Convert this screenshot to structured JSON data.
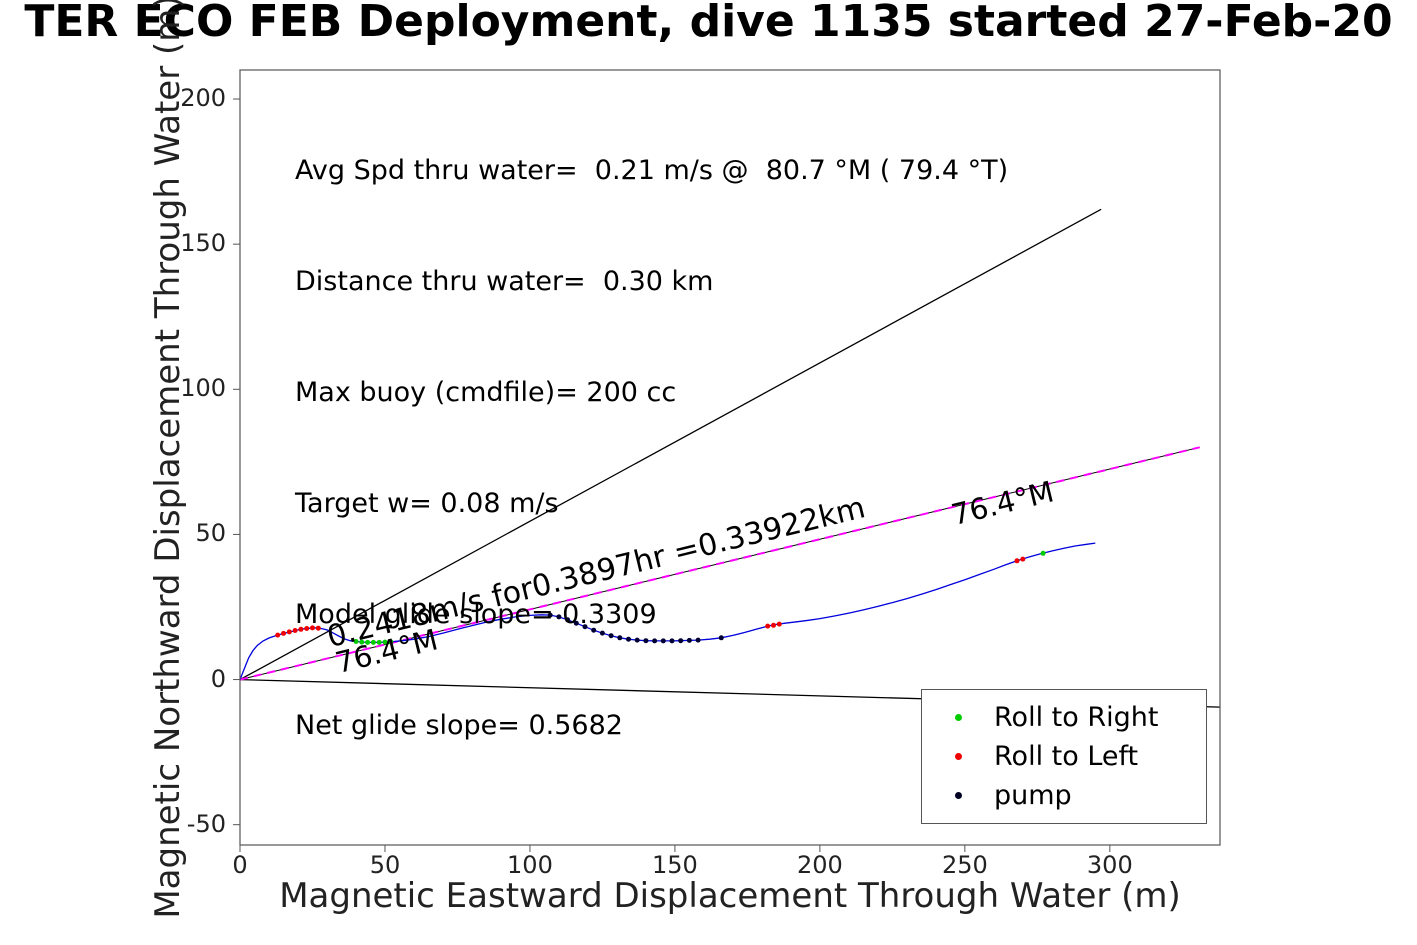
{
  "title": "TER ECO FEB Deployment, dive 1135 started 27-Feb-20",
  "stats": {
    "lines": [
      "Avg Spd thru water=  0.21 m/s @  80.7 °M ( 79.4 °T)",
      "Distance thru water=  0.30 km",
      "Max buoy (cmdfile)= 200 cc",
      "Target w= 0.08 m/s",
      "Model glide slope= 0.3309",
      "Net glide slope= 0.5682"
    ]
  },
  "inline_labels": {
    "speed_distance": "0.2418m/s for0.3897hr =0.33922km",
    "bearing_origin": "76.4°M",
    "bearing_end": "76.4°M"
  },
  "legend": {
    "items": [
      {
        "label": "Roll to Right",
        "color": "#00cc00"
      },
      {
        "label": "Roll to Left",
        "color": "#ee0000"
      },
      {
        "label": "pump",
        "color": "#000022"
      }
    ]
  },
  "chart_data": {
    "type": "line",
    "title": "TER ECO FEB Deployment, dive 1135 started 27-Feb-20",
    "xlabel": "Magnetic Eastward Displacement Through Water (m)",
    "ylabel": "Magnetic Northward Displacement Through Water (m)",
    "xlim": [
      0,
      338
    ],
    "ylim": [
      -57,
      210
    ],
    "x_ticks": [
      0,
      50,
      100,
      150,
      200,
      250,
      300
    ],
    "y_ticks": [
      -50,
      0,
      50,
      100,
      150,
      200
    ],
    "grid": false,
    "legend_position": "lower right",
    "annotations": [
      {
        "text": "0.2418m/s for0.3897hr =0.33922km",
        "rotation_deg": -13.7,
        "near_xy": [
          35,
          12
        ]
      },
      {
        "text": "76.4°M",
        "rotation_deg": -13.7,
        "near_xy": [
          38,
          4
        ]
      },
      {
        "text": "76.4°M",
        "rotation_deg": -13.7,
        "near_xy": [
          250,
          52
        ]
      }
    ],
    "series": [
      {
        "name": "upper-black-ray",
        "type": "line",
        "color": "#000000",
        "width": 1.3,
        "points": [
          [
            0,
            0
          ],
          [
            297,
            162
          ]
        ]
      },
      {
        "name": "lower-black-ray",
        "type": "line",
        "color": "#000000",
        "width": 1.3,
        "points": [
          [
            0,
            0
          ],
          [
            338,
            -9.5
          ]
        ]
      },
      {
        "name": "dac-line-black-underlay",
        "type": "line",
        "color": "#000000",
        "width": 1,
        "points": [
          [
            0,
            0
          ],
          [
            331,
            80
          ]
        ]
      },
      {
        "name": "dac-line-magenta-dashed",
        "type": "line",
        "color": "#ff00ff",
        "width": 2,
        "dash": "8,6",
        "points": [
          [
            0,
            0
          ],
          [
            331,
            80
          ]
        ]
      },
      {
        "name": "trajectory-through-water",
        "type": "line",
        "color": "#0000dd",
        "width": 1.3,
        "points": [
          [
            0,
            0
          ],
          [
            1,
            2.5
          ],
          [
            2,
            5
          ],
          [
            3,
            7.5
          ],
          [
            4.5,
            10
          ],
          [
            6,
            11.8
          ],
          [
            8,
            13.3
          ],
          [
            10,
            14.3
          ],
          [
            12,
            15.0
          ],
          [
            14,
            15.6
          ],
          [
            16,
            16.1
          ],
          [
            18,
            16.6
          ],
          [
            20,
            17.1
          ],
          [
            22,
            17.5
          ],
          [
            24,
            17.7
          ],
          [
            26,
            17.8
          ],
          [
            28,
            17.6
          ],
          [
            30,
            17.1
          ],
          [
            32,
            16.1
          ],
          [
            34,
            15.0
          ],
          [
            36,
            14.0
          ],
          [
            38,
            13.4
          ],
          [
            40,
            13.1
          ],
          [
            42,
            12.9
          ],
          [
            44,
            12.8
          ],
          [
            46,
            12.8
          ],
          [
            48,
            12.8
          ],
          [
            50,
            12.9
          ],
          [
            53,
            13.1
          ],
          [
            56,
            13.4
          ],
          [
            60,
            13.9
          ],
          [
            65,
            14.8
          ],
          [
            70,
            16.0
          ],
          [
            75,
            17.3
          ],
          [
            80,
            18.6
          ],
          [
            85,
            19.8
          ],
          [
            90,
            20.8
          ],
          [
            95,
            21.6
          ],
          [
            100,
            22.1
          ],
          [
            104,
            22.3
          ],
          [
            107,
            22.2
          ],
          [
            110,
            21.6
          ],
          [
            113,
            20.6
          ],
          [
            116,
            19.4
          ],
          [
            119,
            18.2
          ],
          [
            122,
            17.0
          ],
          [
            125,
            16.0
          ],
          [
            128,
            15.1
          ],
          [
            131,
            14.4
          ],
          [
            134,
            13.9
          ],
          [
            137,
            13.6
          ],
          [
            140,
            13.4
          ],
          [
            143,
            13.3
          ],
          [
            146,
            13.3
          ],
          [
            149,
            13.3
          ],
          [
            152,
            13.4
          ],
          [
            155,
            13.5
          ],
          [
            158,
            13.6
          ],
          [
            162,
            13.9
          ],
          [
            166,
            14.4
          ],
          [
            170,
            15.2
          ],
          [
            174,
            16.2
          ],
          [
            178,
            17.3
          ],
          [
            182,
            18.4
          ],
          [
            185,
            19.0
          ],
          [
            188,
            19.4
          ],
          [
            192,
            19.9
          ],
          [
            196,
            20.4
          ],
          [
            200,
            21.0
          ],
          [
            205,
            21.9
          ],
          [
            210,
            22.9
          ],
          [
            215,
            24.0
          ],
          [
            220,
            25.2
          ],
          [
            225,
            26.5
          ],
          [
            230,
            27.9
          ],
          [
            235,
            29.4
          ],
          [
            240,
            31.0
          ],
          [
            245,
            32.7
          ],
          [
            250,
            34.4
          ],
          [
            255,
            36.2
          ],
          [
            260,
            38.0
          ],
          [
            264,
            39.5
          ],
          [
            268,
            40.9
          ],
          [
            272,
            42.2
          ],
          [
            276,
            43.3
          ],
          [
            280,
            44.3
          ],
          [
            284,
            45.2
          ],
          [
            288,
            46.0
          ],
          [
            292,
            46.6
          ],
          [
            295,
            47.0
          ]
        ]
      },
      {
        "name": "roll-to-left-markers",
        "type": "scatter",
        "color": "#ee0000",
        "r": 2.5,
        "points": [
          [
            13,
            15.3
          ],
          [
            15,
            15.9
          ],
          [
            17,
            16.4
          ],
          [
            19,
            16.9
          ],
          [
            21,
            17.3
          ],
          [
            23,
            17.6
          ],
          [
            25,
            17.8
          ],
          [
            27,
            17.7
          ],
          [
            182,
            18.4
          ],
          [
            184,
            18.7
          ],
          [
            186,
            19.1
          ],
          [
            268,
            40.9
          ],
          [
            270,
            41.5
          ]
        ]
      },
      {
        "name": "roll-to-right-markers",
        "type": "scatter",
        "color": "#00cc00",
        "r": 2.5,
        "points": [
          [
            40,
            13.1
          ],
          [
            42,
            12.9
          ],
          [
            44,
            12.8
          ],
          [
            46,
            12.8
          ],
          [
            48,
            12.8
          ],
          [
            50,
            12.9
          ],
          [
            52,
            13.0
          ],
          [
            277,
            43.5
          ]
        ]
      },
      {
        "name": "pump-markers",
        "type": "scatter",
        "color": "#000033",
        "r": 2.5,
        "points": [
          [
            107,
            22.2
          ],
          [
            110,
            21.6
          ],
          [
            113,
            20.6
          ],
          [
            116,
            19.4
          ],
          [
            119,
            18.2
          ],
          [
            122,
            17.0
          ],
          [
            125,
            16.0
          ],
          [
            128,
            15.1
          ],
          [
            131,
            14.4
          ],
          [
            134,
            13.9
          ],
          [
            137,
            13.6
          ],
          [
            140,
            13.4
          ],
          [
            143,
            13.3
          ],
          [
            146,
            13.3
          ],
          [
            149,
            13.3
          ],
          [
            152,
            13.4
          ],
          [
            155,
            13.5
          ],
          [
            158,
            13.6
          ],
          [
            166,
            14.4
          ]
        ]
      }
    ]
  }
}
